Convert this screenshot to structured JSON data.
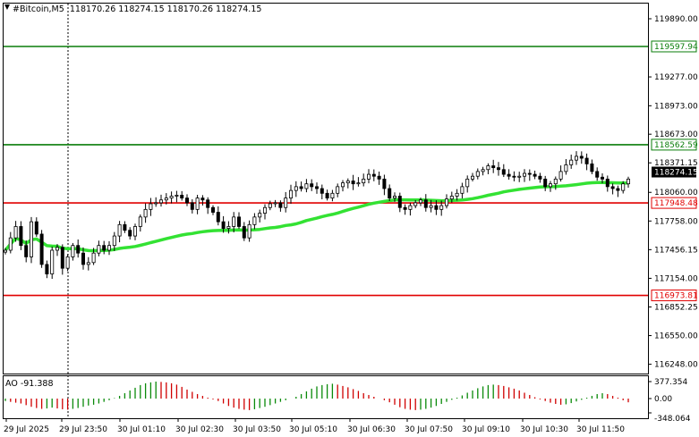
{
  "header": {
    "symbol": "#Bitcoin,M5",
    "ohlc": "118170.26 118274.15 118170.26 118274.15"
  },
  "indicator": {
    "label": "AO -91.388",
    "scale_labels": [
      "377.354",
      "0.00",
      "-348.064"
    ]
  },
  "colors": {
    "candle": "#000000",
    "ma": "#33e233",
    "support_resistance": "#e10000",
    "target": "#0a7d0a",
    "ao_up": "#0a8a0a",
    "ao_down": "#d00000",
    "current_price_bg": "#000000",
    "current_price_fg": "#ffffff"
  },
  "chart_data": {
    "type": "candlestick",
    "price_axis_ticks": [
      119890.0,
      119277.0,
      118973.0,
      118673.0,
      118371.15,
      118060.0,
      117758.0,
      117456.15,
      117154.0,
      116852.25,
      116550.0,
      116248.0
    ],
    "ylim": [
      116150,
      120050
    ],
    "x_tick_labels": [
      "29 Jul 2025",
      "29 Jul 23:50",
      "30 Jul 01:10",
      "30 Jul 02:30",
      "30 Jul 03:50",
      "30 Jul 05:10",
      "30 Jul 06:30",
      "30 Jul 07:50",
      "30 Jul 09:10",
      "30 Jul 10:30",
      "30 Jul 11:50"
    ],
    "horizontal_lines": [
      {
        "value": 119597.94,
        "label": "119597.94",
        "color": "#0a7d0a"
      },
      {
        "value": 118562.59,
        "label": "118562.59",
        "color": "#0a7d0a"
      },
      {
        "value": 117948.48,
        "label": "117948.48",
        "color": "#e10000"
      },
      {
        "value": 116973.81,
        "label": "116973.81",
        "color": "#e10000"
      }
    ],
    "current_price": {
      "value": 118274.15,
      "label": "118274.15"
    },
    "closes": [
      117450,
      117580,
      117700,
      117500,
      117380,
      117750,
      117620,
      117300,
      117200,
      117450,
      117480,
      117260,
      117380,
      117500,
      117420,
      117300,
      117320,
      117420,
      117500,
      117450,
      117500,
      117600,
      117720,
      117660,
      117600,
      117700,
      117800,
      117880,
      117940,
      117950,
      117980,
      118000,
      118020,
      118030,
      118000,
      117950,
      117880,
      118000,
      117980,
      117900,
      117850,
      117750,
      117680,
      117700,
      117800,
      117700,
      117580,
      117720,
      117800,
      117840,
      117900,
      117940,
      117950,
      117900,
      118000,
      118080,
      118120,
      118100,
      118150,
      118120,
      118100,
      118050,
      118000,
      118050,
      118120,
      118160,
      118180,
      118150,
      118160,
      118200,
      118250,
      118230,
      118200,
      118100,
      118000,
      118020,
      117900,
      117880,
      117920,
      117950,
      117980,
      117900,
      117920,
      117880,
      117920,
      117990,
      118020,
      118050,
      118120,
      118200,
      118230,
      118280,
      118300,
      118340,
      118320,
      118300,
      118250,
      118230,
      118220,
      118230,
      118260,
      118250,
      118230,
      118200,
      118120,
      118150,
      118200,
      118280,
      118350,
      118400,
      118440,
      118420,
      118360,
      118280,
      118220,
      118200,
      118120,
      118100,
      118080,
      118150,
      118200
    ],
    "ma_period": 50,
    "ao_values": [
      -60,
      -80,
      -100,
      -120,
      -160,
      -200,
      -230,
      -250,
      -240,
      -220,
      -240,
      -260,
      -270,
      -250,
      -230,
      -200,
      -170,
      -150,
      -120,
      -80,
      -40,
      10,
      60,
      120,
      180,
      240,
      300,
      340,
      360,
      377,
      370,
      360,
      340,
      310,
      260,
      200,
      150,
      100,
      60,
      20,
      -20,
      -60,
      -120,
      -180,
      -220,
      -250,
      -270,
      -280,
      -260,
      -230,
      -200,
      -160,
      -120,
      -80,
      -40,
      0,
      40,
      100,
      160,
      220,
      270,
      300,
      320,
      330,
      310,
      280,
      250,
      210,
      170,
      120,
      80,
      40,
      0,
      -40,
      -90,
      -150,
      -210,
      -250,
      -270,
      -280,
      -270,
      -250,
      -220,
      -180,
      -130,
      -80,
      -30,
      20,
      70,
      130,
      180,
      230,
      270,
      300,
      310,
      300,
      280,
      250,
      220,
      180,
      130,
      80,
      30,
      -20,
      -60,
      -100,
      -130,
      -150,
      -140,
      -110,
      -70,
      -30,
      20,
      60,
      100,
      120,
      100,
      60,
      20,
      -40,
      -91
    ]
  }
}
